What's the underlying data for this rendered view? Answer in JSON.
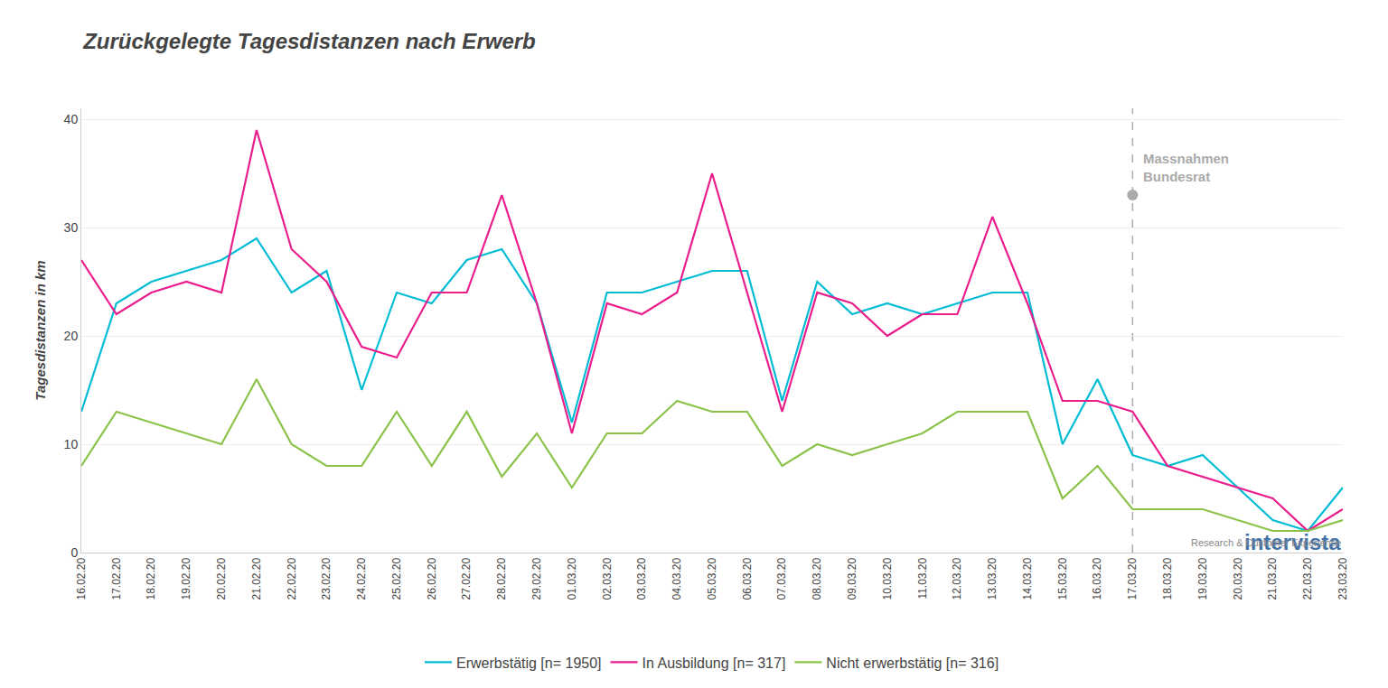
{
  "chart_data": {
    "type": "line",
    "title": "Zurückgelegte Tagesdistanzen nach Erwerb",
    "ylabel": "Tagesdistanzen in km",
    "categories": [
      "16.02.20",
      "17.02.20",
      "18.02.20",
      "19.02.20",
      "20.02.20",
      "21.02.20",
      "22.02.20",
      "23.02.20",
      "24.02.20",
      "25.02.20",
      "26.02.20",
      "27.02.20",
      "28.02.20",
      "29.02.20",
      "01.03.20",
      "02.03.20",
      "03.03.20",
      "04.03.20",
      "05.03.20",
      "06.03.20",
      "07.03.20",
      "08.03.20",
      "09.03.20",
      "10.03.20",
      "11.03.20",
      "12.03.20",
      "13.03.20",
      "14.03.20",
      "15.03.20",
      "16.03.20",
      "17.03.20",
      "18.03.20",
      "19.03.20",
      "20.03.20",
      "21.03.20",
      "22.03.20",
      "23.03.20"
    ],
    "series": [
      {
        "name": "Erwerbstätig [n= 1950]",
        "color": "#00bcd4",
        "values": [
          13,
          23,
          25,
          26,
          27,
          29,
          24,
          26,
          15,
          24,
          23,
          27,
          28,
          23,
          12,
          24,
          24,
          25,
          26,
          26,
          14,
          25,
          22,
          23,
          22,
          23,
          24,
          24,
          10,
          16,
          9,
          8,
          9,
          6,
          3,
          2,
          6
        ]
      },
      {
        "name": "In Ausbildung [n= 317]",
        "color": "#e91e8c",
        "values": [
          27,
          22,
          24,
          25,
          24,
          39,
          28,
          25,
          19,
          18,
          24,
          24,
          33,
          23,
          11,
          23,
          22,
          24,
          35,
          24,
          13,
          24,
          23,
          20,
          22,
          22,
          31,
          23,
          14,
          14,
          13,
          8,
          7,
          6,
          5,
          2,
          4
        ]
      },
      {
        "name": "Nicht erwerbstätig [n= 316]",
        "color": "#8bc34a",
        "values": [
          8,
          13,
          12,
          11,
          10,
          16,
          10,
          8,
          8,
          13,
          8,
          13,
          7,
          11,
          6,
          11,
          11,
          14,
          13,
          13,
          8,
          10,
          9,
          10,
          11,
          13,
          13,
          13,
          5,
          8,
          4,
          4,
          4,
          3,
          2,
          2,
          3
        ]
      }
    ],
    "annotations": [
      {
        "text": "Massnahmen\nBundesrat",
        "x": "17.03.20",
        "y": 33,
        "color": "#aaaaaa"
      },
      {
        "text": "intervista",
        "color": "#4472a8"
      },
      {
        "text": "Research & Customer Experience",
        "color": "#888888"
      }
    ],
    "ylim": [
      0,
      41
    ],
    "yticks": [
      0,
      10,
      20,
      30,
      40
    ],
    "grid": true,
    "legend": "bottom"
  }
}
